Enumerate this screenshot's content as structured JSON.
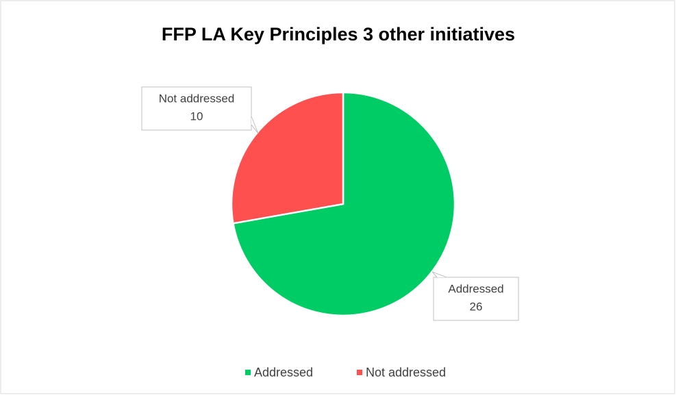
{
  "chart_data": {
    "type": "pie",
    "title": "FFP LA Key Principles 3 other initiatives",
    "categories": [
      "Addressed",
      "Not addressed"
    ],
    "values": [
      26,
      10
    ],
    "colors": [
      "#00cc66",
      "#ff5050"
    ],
    "legend": "bottom"
  }
}
